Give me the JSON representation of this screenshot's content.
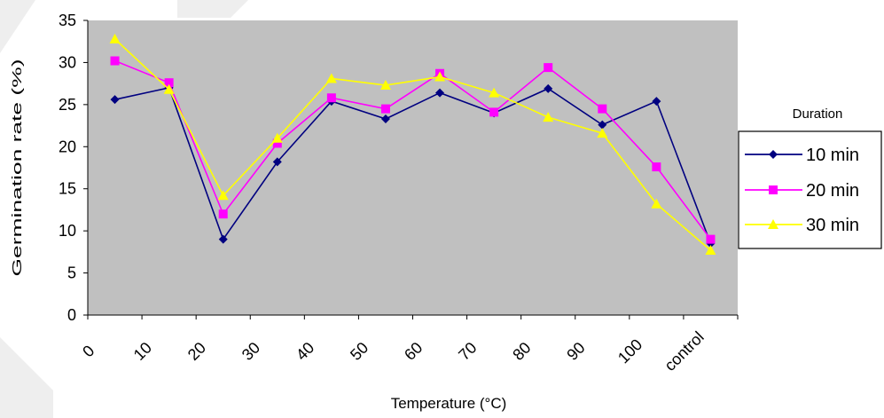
{
  "chart_data": {
    "type": "line",
    "ylabel": "Germination rate (%)",
    "xlabel": "Temperature (°C)",
    "categories": [
      "0",
      "10",
      "20",
      "30",
      "40",
      "50",
      "60",
      "70",
      "80",
      "90",
      "100",
      "control"
    ],
    "yticks": [
      "0",
      "5",
      "10",
      "15",
      "20",
      "25",
      "30",
      "35"
    ],
    "ylim": [
      0,
      35
    ],
    "grid": false,
    "plot_background": "#c0c0c0",
    "legend": {
      "title": "Duration",
      "placement": "right"
    },
    "series": [
      {
        "name": "10 min",
        "color": "#000080",
        "marker": "diamond",
        "values": [
          25.6,
          27.0,
          9.0,
          18.2,
          25.4,
          23.3,
          26.4,
          24.0,
          26.9,
          22.6,
          25.4,
          8.5
        ]
      },
      {
        "name": "20 min",
        "color": "#ff00ff",
        "marker": "square",
        "values": [
          30.2,
          27.6,
          12.0,
          20.4,
          25.8,
          24.5,
          28.7,
          24.1,
          29.4,
          24.5,
          17.6,
          9.0
        ]
      },
      {
        "name": "30 min",
        "color": "#ffff00",
        "marker": "triangle",
        "values": [
          32.8,
          26.8,
          14.2,
          21.0,
          28.1,
          27.3,
          28.3,
          26.4,
          23.5,
          21.6,
          13.2,
          7.7
        ]
      }
    ]
  }
}
